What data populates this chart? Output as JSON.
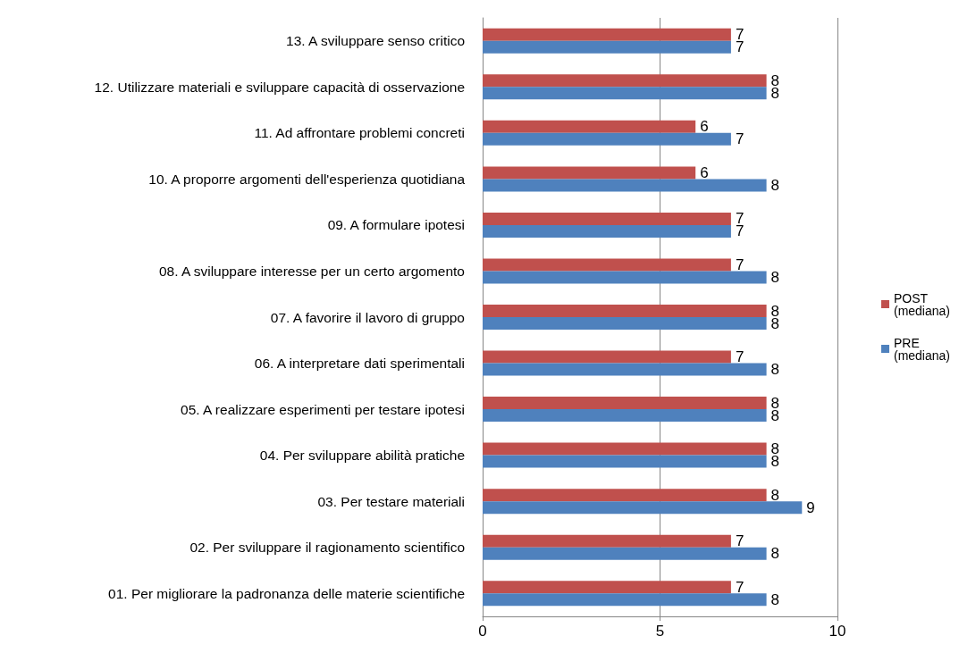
{
  "chart_data": {
    "type": "bar",
    "orientation": "horizontal",
    "categories": [
      "13. A sviluppare senso critico",
      "12. Utilizzare materiali e sviluppare capacità di osservazione",
      "11. Ad affrontare problemi concreti",
      "10. A proporre argomenti dell'esperienza quotidiana",
      "09. A formulare ipotesi",
      "08. A sviluppare interesse per un certo argomento",
      "07. A favorire il lavoro di gruppo",
      "06. A interpretare dati sperimentali",
      "05. A realizzare esperimenti per testare ipotesi",
      "04. Per sviluppare abilità pratiche",
      "03. Per testare materiali",
      "02. Per sviluppare il ragionamento scientifico",
      "01. Per migliorare la padronanza delle materie scientifiche"
    ],
    "series": [
      {
        "name": "POST (mediana)",
        "color": "#c0504d",
        "values": [
          7,
          8,
          6,
          6,
          7,
          7,
          8,
          7,
          8,
          8,
          8,
          7,
          7
        ]
      },
      {
        "name": "PRE (mediana)",
        "color": "#4f81bd",
        "values": [
          7,
          8,
          7,
          8,
          7,
          8,
          8,
          8,
          8,
          8,
          9,
          8,
          8
        ]
      }
    ],
    "xlim": [
      0,
      10
    ],
    "xticks": [
      0,
      5,
      10
    ],
    "grid": "x",
    "legend": "right",
    "data_labels": true
  }
}
